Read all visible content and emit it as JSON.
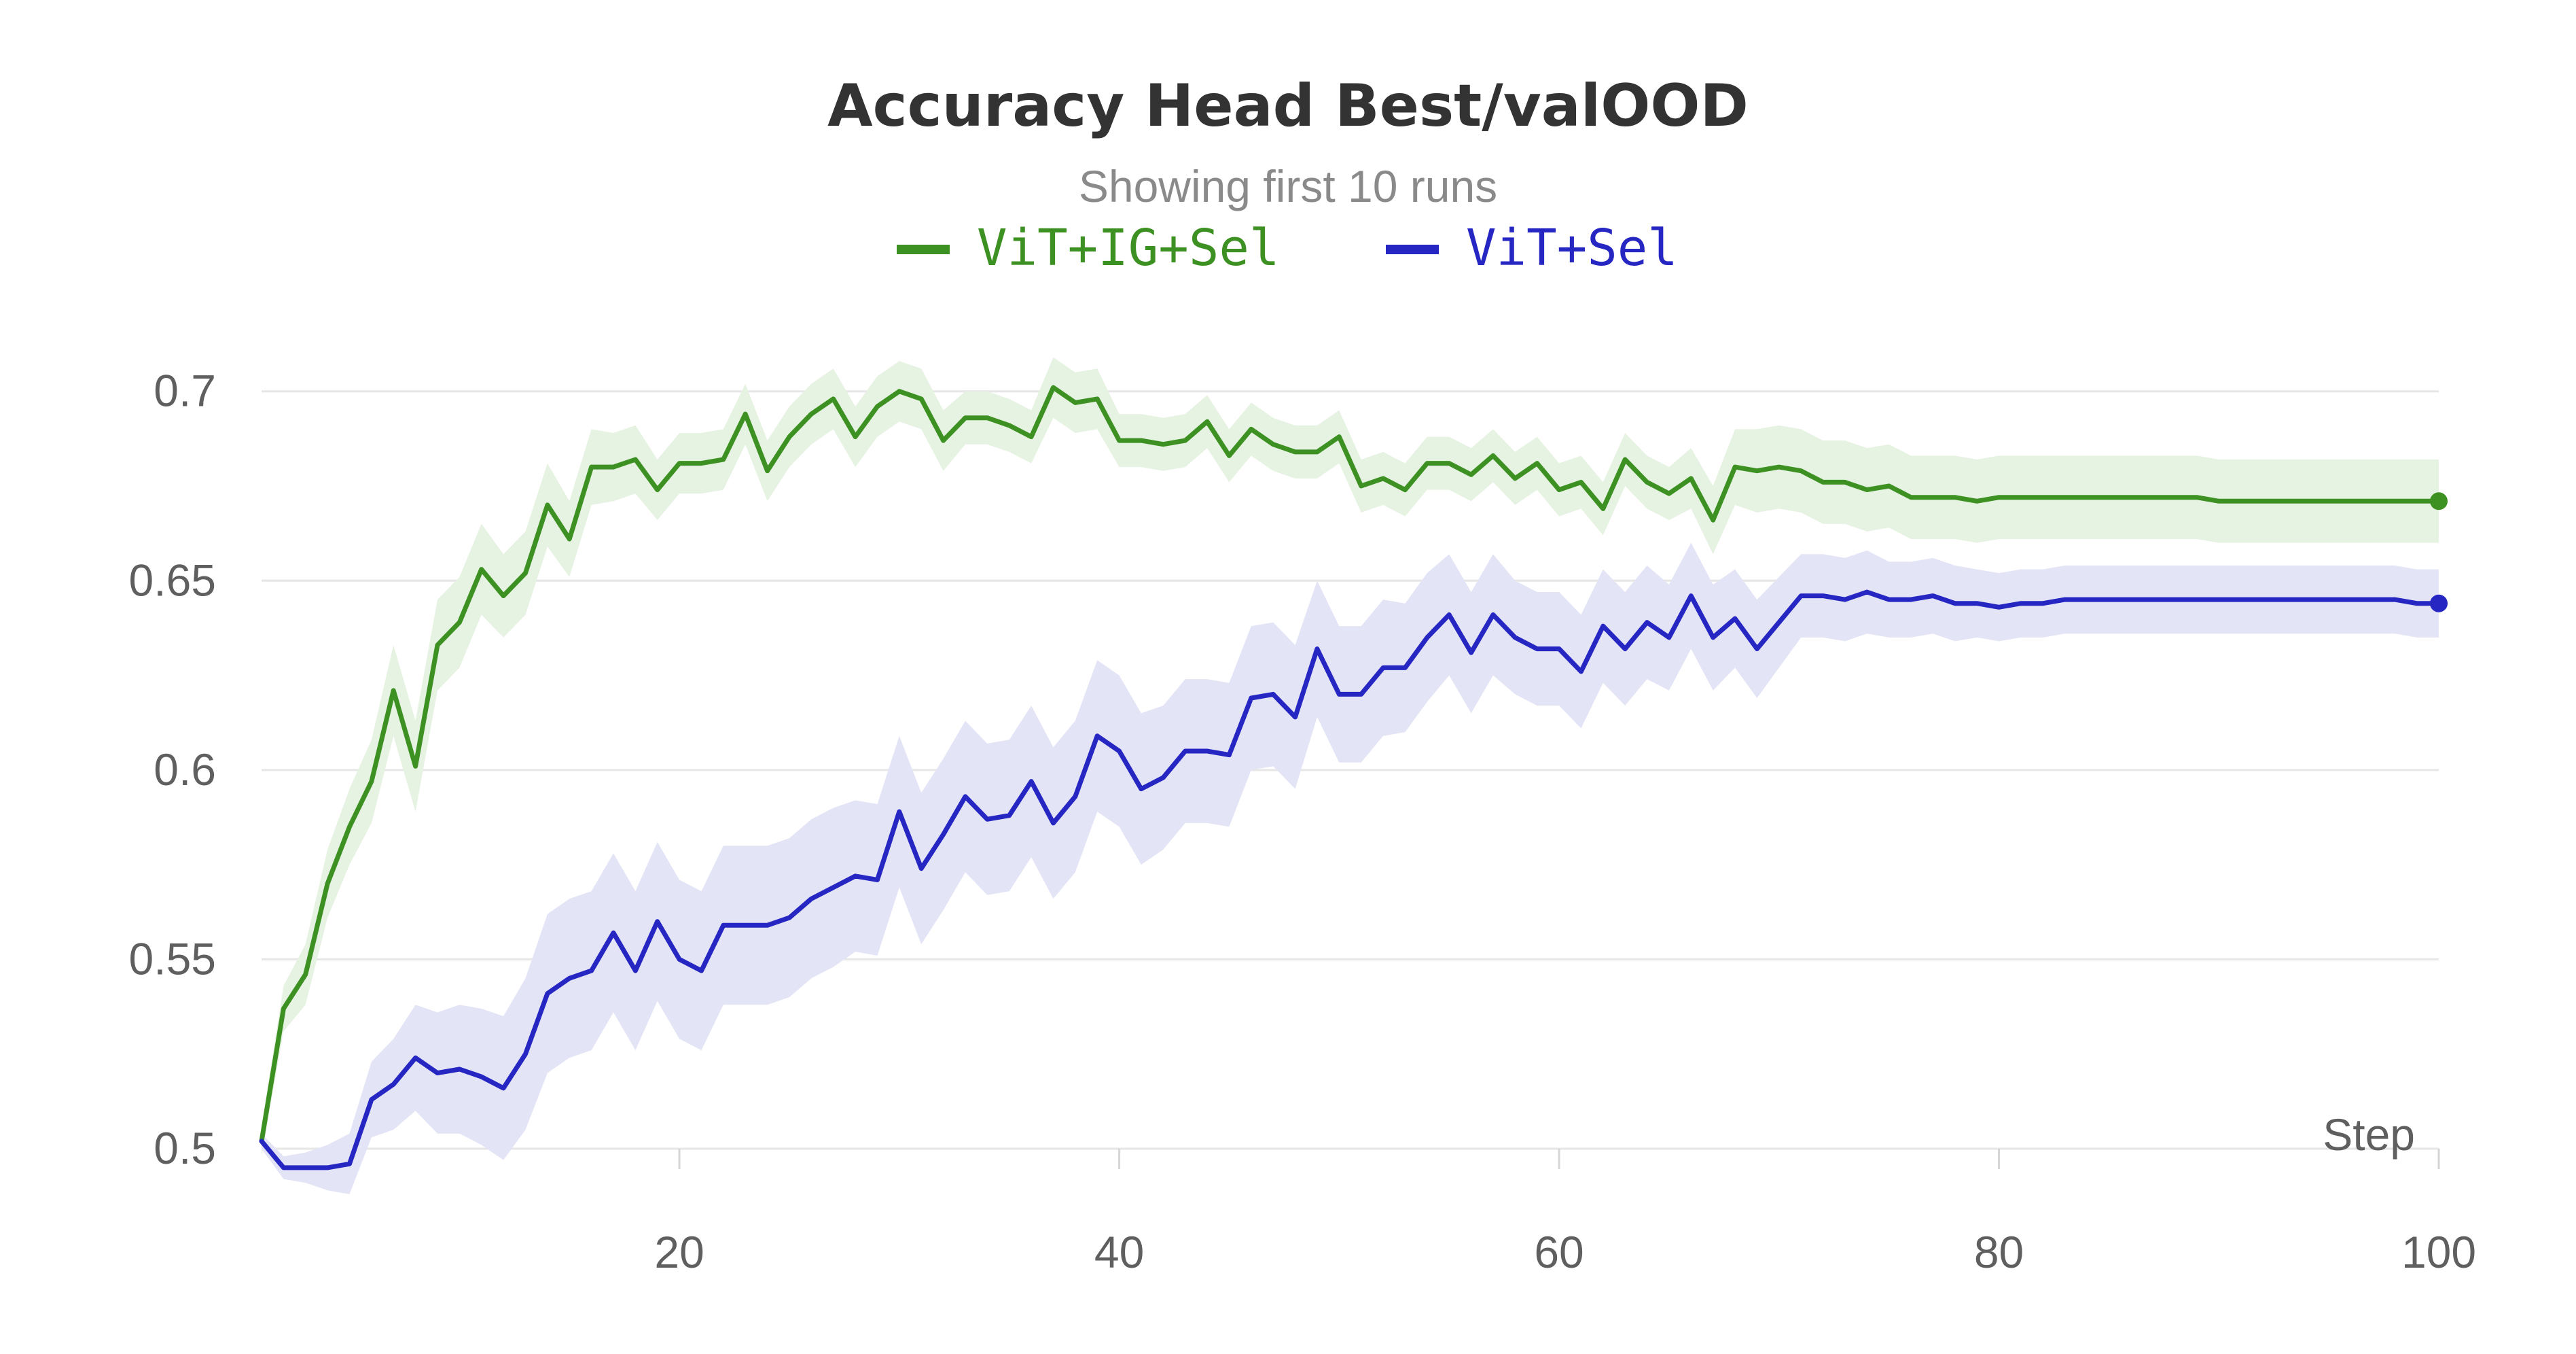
{
  "chart_data": {
    "type": "line",
    "title": "Accuracy Head Best/valOOD",
    "subtitle": "Showing first 10 runs",
    "xlabel": "Step",
    "ylabel": "",
    "xlim": [
      1,
      100
    ],
    "ylim": [
      0.5,
      0.71
    ],
    "xticks": [
      20,
      40,
      60,
      80,
      100
    ],
    "yticks": [
      0.5,
      0.55,
      0.6,
      0.65,
      0.7
    ],
    "ytick_labels": [
      "0.5",
      "0.55",
      "0.6",
      "0.65",
      "0.7"
    ],
    "grid": true,
    "legend_position": "top-center",
    "series": [
      {
        "name": "ViT+IG+Sel",
        "color": "#3d9122",
        "band_color": "#e6f2e2",
        "x": [
          1,
          2,
          3,
          4,
          5,
          6,
          7,
          8,
          9,
          10,
          11,
          12,
          13,
          14,
          15,
          16,
          17,
          18,
          19,
          20,
          21,
          22,
          23,
          24,
          25,
          26,
          27,
          28,
          29,
          30,
          31,
          32,
          33,
          34,
          35,
          36,
          37,
          38,
          39,
          40,
          41,
          42,
          43,
          44,
          45,
          46,
          47,
          48,
          49,
          50,
          51,
          52,
          53,
          54,
          55,
          56,
          57,
          58,
          59,
          60,
          61,
          62,
          63,
          64,
          65,
          66,
          67,
          68,
          69,
          70,
          71,
          72,
          73,
          74,
          75,
          76,
          77,
          78,
          79,
          80,
          81,
          82,
          83,
          84,
          85,
          86,
          87,
          88,
          89,
          90,
          91,
          92,
          93,
          94,
          95,
          96,
          97,
          98,
          99,
          100
        ],
        "values": [
          0.502,
          0.537,
          0.546,
          0.57,
          0.585,
          0.597,
          0.621,
          0.601,
          0.633,
          0.639,
          0.653,
          0.646,
          0.652,
          0.67,
          0.661,
          0.68,
          0.68,
          0.682,
          0.674,
          0.681,
          0.681,
          0.682,
          0.694,
          0.679,
          0.688,
          0.694,
          0.698,
          0.688,
          0.696,
          0.7,
          0.698,
          0.687,
          0.693,
          0.693,
          0.691,
          0.688,
          0.701,
          0.697,
          0.698,
          0.687,
          0.687,
          0.686,
          0.687,
          0.692,
          0.683,
          0.69,
          0.686,
          0.684,
          0.684,
          0.688,
          0.675,
          0.677,
          0.674,
          0.681,
          0.681,
          0.678,
          0.683,
          0.677,
          0.681,
          0.674,
          0.676,
          0.669,
          0.682,
          0.676,
          0.673,
          0.677,
          0.666,
          0.68,
          0.679,
          0.68,
          0.679,
          0.676,
          0.676,
          0.674,
          0.675,
          0.672,
          0.672,
          0.672,
          0.671,
          0.672,
          0.672,
          0.672,
          0.672,
          0.672,
          0.672,
          0.672,
          0.672,
          0.672,
          0.672,
          0.671,
          0.671,
          0.671,
          0.671,
          0.671,
          0.671,
          0.671,
          0.671,
          0.671,
          0.671,
          0.671
        ],
        "band": [
          0.004,
          0.006,
          0.008,
          0.009,
          0.01,
          0.011,
          0.012,
          0.012,
          0.012,
          0.012,
          0.012,
          0.011,
          0.011,
          0.011,
          0.01,
          0.01,
          0.009,
          0.009,
          0.008,
          0.008,
          0.008,
          0.008,
          0.008,
          0.008,
          0.008,
          0.008,
          0.008,
          0.008,
          0.008,
          0.008,
          0.008,
          0.008,
          0.007,
          0.007,
          0.007,
          0.007,
          0.008,
          0.008,
          0.008,
          0.007,
          0.007,
          0.007,
          0.007,
          0.007,
          0.007,
          0.007,
          0.007,
          0.007,
          0.007,
          0.007,
          0.007,
          0.007,
          0.007,
          0.007,
          0.007,
          0.007,
          0.007,
          0.007,
          0.007,
          0.007,
          0.007,
          0.007,
          0.007,
          0.007,
          0.007,
          0.008,
          0.009,
          0.01,
          0.011,
          0.011,
          0.011,
          0.011,
          0.011,
          0.011,
          0.011,
          0.011,
          0.011,
          0.011,
          0.011,
          0.011,
          0.011,
          0.011,
          0.011,
          0.011,
          0.011,
          0.011,
          0.011,
          0.011,
          0.011,
          0.011,
          0.011,
          0.011,
          0.011,
          0.011,
          0.011,
          0.011,
          0.011,
          0.011,
          0.011,
          0.011
        ]
      },
      {
        "name": "ViT+Sel",
        "color": "#2626c2",
        "band_color": "#e4e4f7",
        "x": [
          1,
          2,
          3,
          4,
          5,
          6,
          7,
          8,
          9,
          10,
          11,
          12,
          13,
          14,
          15,
          16,
          17,
          18,
          19,
          20,
          21,
          22,
          23,
          24,
          25,
          26,
          27,
          28,
          29,
          30,
          31,
          32,
          33,
          34,
          35,
          36,
          37,
          38,
          39,
          40,
          41,
          42,
          43,
          44,
          45,
          46,
          47,
          48,
          49,
          50,
          51,
          52,
          53,
          54,
          55,
          56,
          57,
          58,
          59,
          60,
          61,
          62,
          63,
          64,
          65,
          66,
          67,
          68,
          69,
          70,
          71,
          72,
          73,
          74,
          75,
          76,
          77,
          78,
          79,
          80,
          81,
          82,
          83,
          84,
          85,
          86,
          87,
          88,
          89,
          90,
          91,
          92,
          93,
          94,
          95,
          96,
          97,
          98,
          99,
          100
        ],
        "values": [
          0.502,
          0.495,
          0.495,
          0.495,
          0.496,
          0.513,
          0.517,
          0.524,
          0.52,
          0.521,
          0.519,
          0.516,
          0.525,
          0.541,
          0.545,
          0.547,
          0.557,
          0.547,
          0.56,
          0.55,
          0.547,
          0.559,
          0.559,
          0.559,
          0.561,
          0.566,
          0.569,
          0.572,
          0.571,
          0.589,
          0.574,
          0.583,
          0.593,
          0.587,
          0.588,
          0.597,
          0.586,
          0.593,
          0.609,
          0.605,
          0.595,
          0.598,
          0.605,
          0.605,
          0.604,
          0.619,
          0.62,
          0.614,
          0.632,
          0.62,
          0.62,
          0.627,
          0.627,
          0.635,
          0.641,
          0.631,
          0.641,
          0.635,
          0.632,
          0.632,
          0.626,
          0.638,
          0.632,
          0.639,
          0.635,
          0.646,
          0.635,
          0.64,
          0.632,
          0.639,
          0.646,
          0.646,
          0.645,
          0.647,
          0.645,
          0.645,
          0.646,
          0.644,
          0.644,
          0.643,
          0.644,
          0.644,
          0.645,
          0.645,
          0.645,
          0.645,
          0.645,
          0.645,
          0.645,
          0.645,
          0.645,
          0.645,
          0.645,
          0.645,
          0.645,
          0.645,
          0.645,
          0.645,
          0.644,
          0.644
        ],
        "band": [
          0.002,
          0.003,
          0.004,
          0.006,
          0.008,
          0.01,
          0.012,
          0.014,
          0.016,
          0.017,
          0.018,
          0.019,
          0.02,
          0.021,
          0.021,
          0.021,
          0.021,
          0.021,
          0.021,
          0.021,
          0.021,
          0.021,
          0.021,
          0.021,
          0.021,
          0.021,
          0.021,
          0.02,
          0.02,
          0.02,
          0.02,
          0.02,
          0.02,
          0.02,
          0.02,
          0.02,
          0.02,
          0.02,
          0.02,
          0.02,
          0.02,
          0.019,
          0.019,
          0.019,
          0.019,
          0.019,
          0.019,
          0.019,
          0.018,
          0.018,
          0.018,
          0.018,
          0.017,
          0.017,
          0.016,
          0.016,
          0.016,
          0.015,
          0.015,
          0.015,
          0.015,
          0.015,
          0.015,
          0.015,
          0.014,
          0.014,
          0.014,
          0.013,
          0.013,
          0.012,
          0.011,
          0.011,
          0.011,
          0.011,
          0.01,
          0.01,
          0.01,
          0.01,
          0.009,
          0.009,
          0.009,
          0.009,
          0.009,
          0.009,
          0.009,
          0.009,
          0.009,
          0.009,
          0.009,
          0.009,
          0.009,
          0.009,
          0.009,
          0.009,
          0.009,
          0.009,
          0.009,
          0.009,
          0.009,
          0.009
        ]
      }
    ]
  }
}
